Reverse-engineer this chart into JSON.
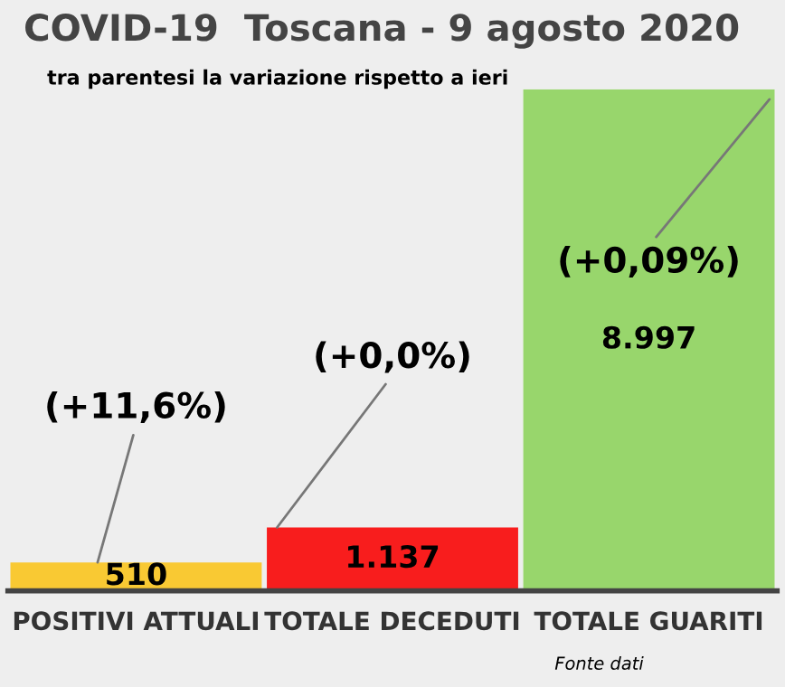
{
  "chart_data": {
    "type": "bar",
    "title": "COVID-19  Toscana - 9 agosto 2020",
    "subtitle": "tra parentesi la variazione rispetto a ieri",
    "categories": [
      "POSITIVI ATTUALI",
      "TOTALE DECEDUTI",
      "TOTALE GUARITI"
    ],
    "values": [
      510,
      1137,
      8997
    ],
    "colors": [
      "#f9c933",
      "#f81d1d",
      "#98d66c"
    ],
    "value_labels": [
      "510",
      "1.137",
      "8.997"
    ],
    "annotations": [
      "(+11,6%)",
      "(+0,0%)",
      "(+0,09%)",
      "Fonte dati"
    ]
  }
}
